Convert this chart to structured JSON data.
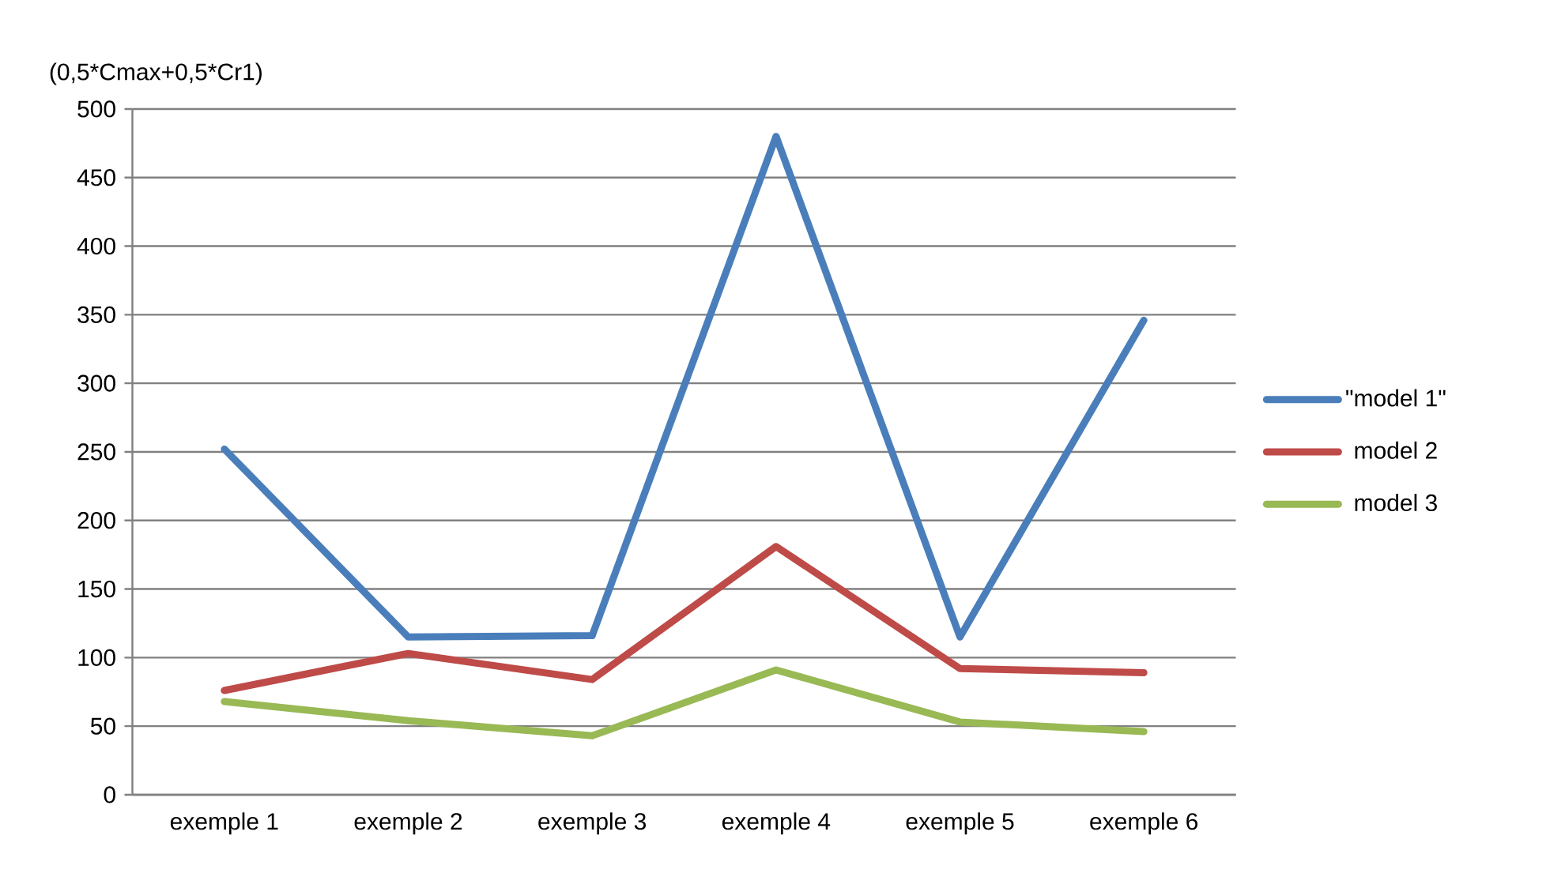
{
  "chart_data": {
    "type": "line",
    "ylabel": "(0,5*Cmax+0,5*Cr1)",
    "categories": [
      "exemple 1",
      "exemple 2",
      "exemple 3",
      "exemple 4",
      "exemple 5",
      "exemple 6"
    ],
    "series": [
      {
        "name": "\"model 1\"",
        "color": "#4a7ebb",
        "values": [
          252,
          115,
          116,
          480,
          115,
          346
        ]
      },
      {
        "name": "model 2",
        "color": "#be4b48",
        "values": [
          76,
          103,
          84,
          181,
          92,
          89
        ]
      },
      {
        "name": "model 3",
        "color": "#98b954",
        "values": [
          68,
          54,
          43,
          91,
          53,
          46
        ]
      }
    ],
    "ylim": [
      0,
      500
    ],
    "yticks": [
      0,
      50,
      100,
      150,
      200,
      250,
      300,
      350,
      400,
      450,
      500
    ],
    "grid": "y",
    "legend": "right",
    "marker": "none",
    "line_style": "solid"
  }
}
